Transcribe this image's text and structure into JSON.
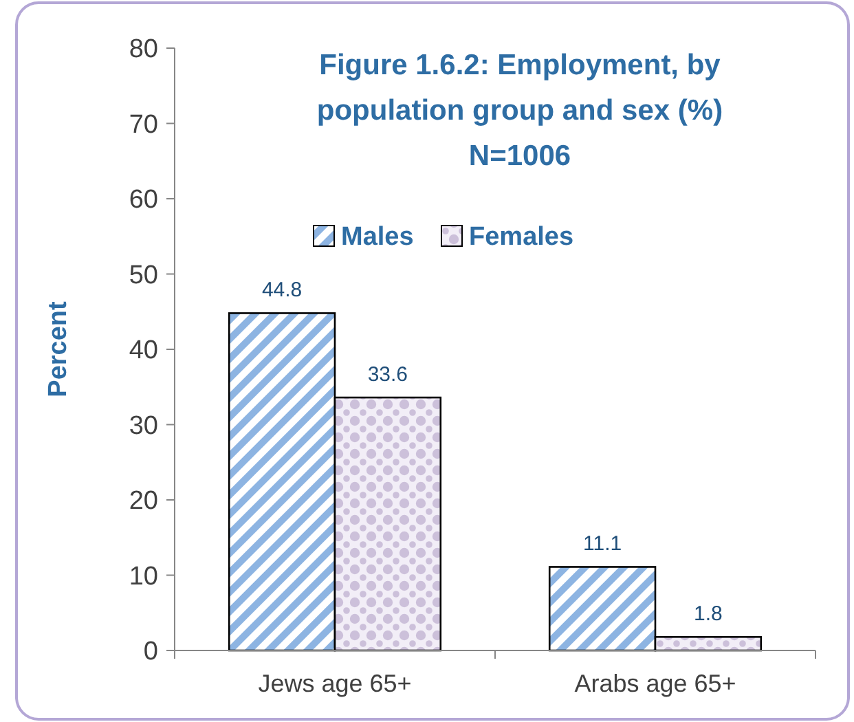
{
  "chart_data": {
    "type": "bar",
    "title": "Figure 1.6.2: Employment, by population group and sex (%)",
    "subtitle": "N=1006",
    "ylabel": "Percent",
    "categories": [
      "Jews age 65+",
      "Arabs age 65+"
    ],
    "series": [
      {
        "name": "Males",
        "color": "#8db4e2",
        "values": [
          44.8,
          11.1
        ]
      },
      {
        "name": "Females",
        "color": "#ccc0da",
        "values": [
          33.6,
          1.8
        ]
      }
    ],
    "ylim": [
      0,
      80
    ],
    "yticks": [
      0,
      10,
      20,
      30,
      40,
      50,
      60,
      70,
      80
    ],
    "data_labels": true,
    "legend": "top",
    "grid": false
  }
}
